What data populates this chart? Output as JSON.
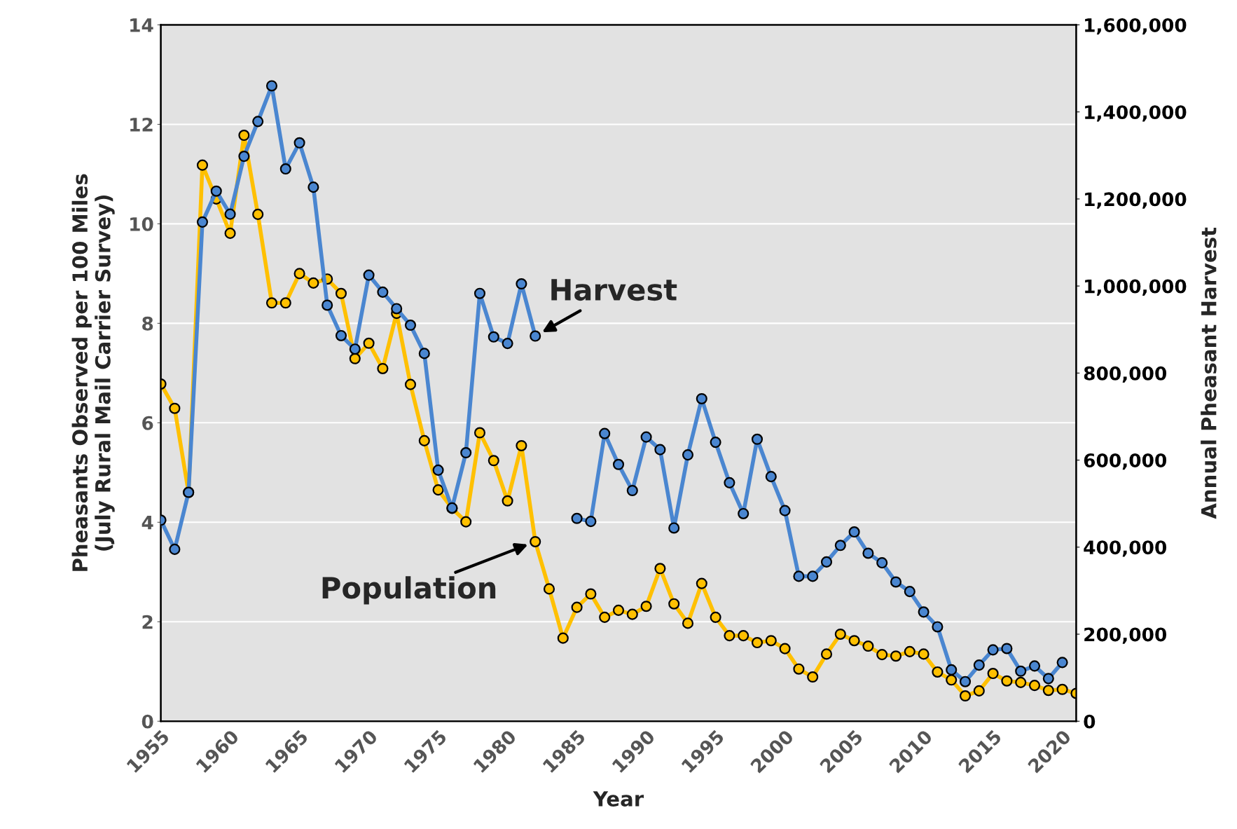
{
  "chart_data": {
    "type": "line",
    "xlabel": "Year",
    "ylabel": "Pheasants Observed per 100 Miles\n(July Rural Mail Carrier Survey)",
    "y2label": "Annual Pheasant Harvest",
    "x": [
      1955,
      1956,
      1957,
      1958,
      1959,
      1960,
      1961,
      1962,
      1963,
      1964,
      1965,
      1966,
      1967,
      1968,
      1969,
      1970,
      1971,
      1972,
      1973,
      1974,
      1975,
      1976,
      1977,
      1978,
      1979,
      1980,
      1981,
      1982,
      1983,
      1984,
      1985,
      1986,
      1987,
      1988,
      1989,
      1990,
      1991,
      1992,
      1993,
      1994,
      1995,
      1996,
      1997,
      1998,
      1999,
      2000,
      2001,
      2002,
      2003,
      2004,
      2005,
      2006,
      2007,
      2008,
      2009,
      2010,
      2011,
      2012,
      2013,
      2014,
      2015,
      2016,
      2017,
      2018,
      2019,
      2020,
      2021
    ],
    "series": [
      {
        "name": "Population",
        "color": "#ffc000",
        "values": [
          6.78,
          6.29,
          4.6,
          11.18,
          10.5,
          9.81,
          11.78,
          10.19,
          8.41,
          8.41,
          9.0,
          8.81,
          8.89,
          8.6,
          7.29,
          7.6,
          7.09,
          8.2,
          6.77,
          5.64,
          4.65,
          4.28,
          4.01,
          5.8,
          5.24,
          4.43,
          5.54,
          3.61,
          2.66,
          1.67,
          2.29,
          2.56,
          2.09,
          2.23,
          2.15,
          2.31,
          3.07,
          2.36,
          1.97,
          2.77,
          2.09,
          1.72,
          1.72,
          1.58,
          1.62,
          1.46,
          1.05,
          0.89,
          1.35,
          1.75,
          1.62,
          1.51,
          1.34,
          1.31,
          1.4,
          1.35,
          0.99,
          0.83,
          0.51,
          0.61,
          0.96,
          0.81,
          0.78,
          0.72,
          0.62,
          0.64,
          0.56
        ]
      },
      {
        "name": "Harvest",
        "color": "#4a86d0",
        "axis": "y2",
        "values": [
          462000,
          395000,
          526000,
          1147000,
          1218000,
          1165000,
          1298000,
          1378000,
          1460000,
          1269000,
          1329000,
          1227000,
          956000,
          886000,
          855000,
          1025000,
          986000,
          948000,
          910000,
          845000,
          577000,
          490000,
          617000,
          983000,
          883000,
          868000,
          1005000,
          885000,
          null,
          null,
          466000,
          459000,
          661000,
          590000,
          530000,
          653000,
          624000,
          444000,
          612000,
          741000,
          641000,
          548000,
          477000,
          648000,
          562000,
          484000,
          333000,
          333000,
          366000,
          404000,
          435000,
          386000,
          364000,
          320000,
          298000,
          251000,
          217000,
          118000,
          91000,
          129000,
          164000,
          167000,
          115000,
          127000,
          98000,
          135000,
          null
        ]
      }
    ],
    "xlim": [
      1955,
      2021
    ],
    "xticks": [
      1955,
      1960,
      1965,
      1970,
      1975,
      1980,
      1985,
      1990,
      1995,
      2000,
      2005,
      2010,
      2015,
      2020
    ],
    "ylim": [
      0,
      14
    ],
    "yticks": [
      0,
      2,
      4,
      6,
      8,
      10,
      12,
      14
    ],
    "y2lim": [
      0,
      1600000
    ],
    "y2ticks": [
      {
        "value": 0,
        "label": "0"
      },
      {
        "value": 200000,
        "label": "200,000"
      },
      {
        "value": 400000,
        "label": "400,000"
      },
      {
        "value": 600000,
        "label": "600,000"
      },
      {
        "value": 800000,
        "label": "800,000"
      },
      {
        "value": 1000000,
        "label": "1,000,000"
      },
      {
        "value": 1200000,
        "label": "1,200,000"
      },
      {
        "value": 1400000,
        "label": "1,400,000"
      },
      {
        "value": 1600000,
        "label": "1,600,000"
      }
    ],
    "grid": "y",
    "marker": "circle",
    "line_style": "solid"
  }
}
